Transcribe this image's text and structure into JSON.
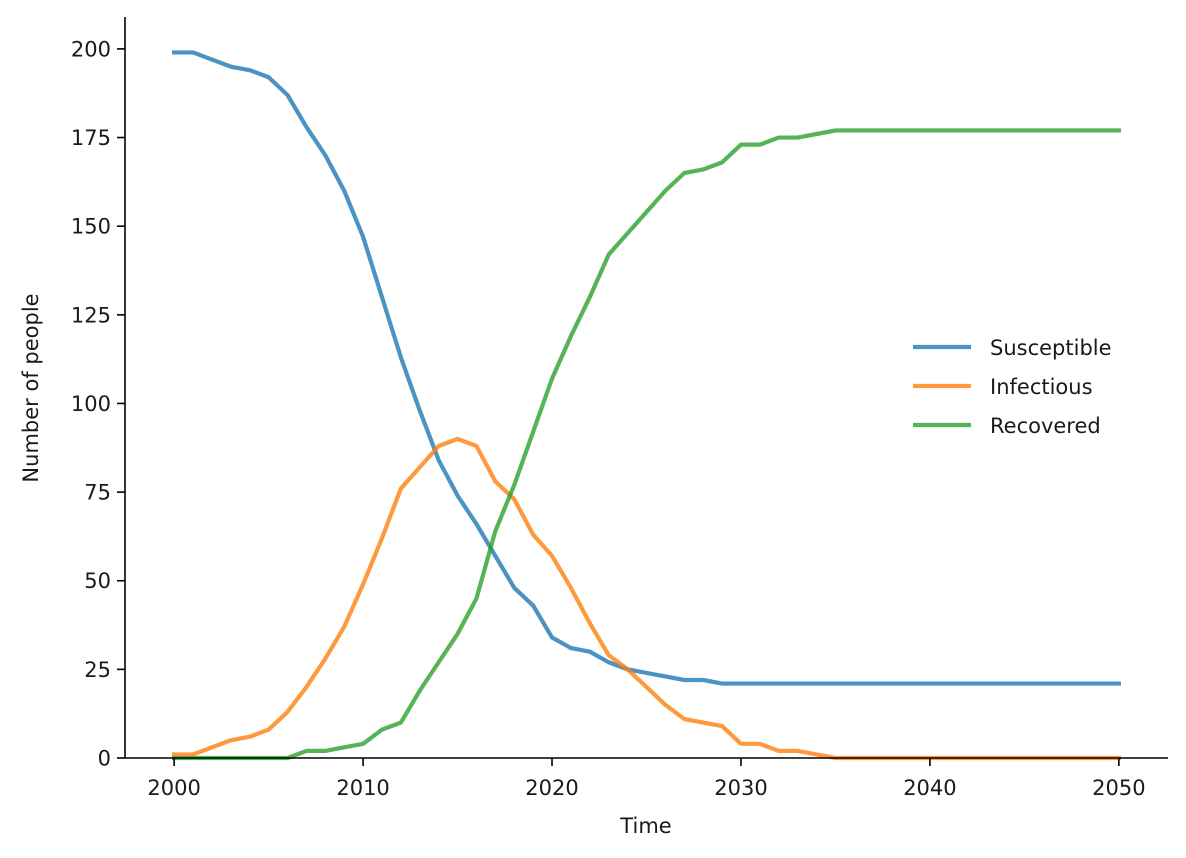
{
  "chart_data": {
    "type": "line",
    "title": "",
    "xlabel": "Time",
    "ylabel": "Number of people",
    "xlim": [
      1997.4,
      2052.6
    ],
    "ylim": [
      0,
      209
    ],
    "x_ticks": [
      2000,
      2010,
      2020,
      2030,
      2040,
      2050
    ],
    "y_ticks": [
      0,
      25,
      50,
      75,
      100,
      125,
      150,
      175,
      200
    ],
    "grid": false,
    "legend": "center-right",
    "x": [
      2000,
      2001,
      2002,
      2003,
      2004,
      2005,
      2006,
      2007,
      2008,
      2009,
      2010,
      2011,
      2012,
      2013,
      2014,
      2015,
      2016,
      2017,
      2018,
      2019,
      2020,
      2021,
      2022,
      2023,
      2024,
      2025,
      2026,
      2027,
      2028,
      2029,
      2030,
      2031,
      2032,
      2033,
      2034,
      2035,
      2036,
      2037,
      2038,
      2039,
      2040,
      2041,
      2042,
      2043,
      2044,
      2045,
      2046,
      2047,
      2048,
      2049,
      2050
    ],
    "series": [
      {
        "name": "Susceptible",
        "color": "#1f77b4",
        "values": [
          199,
          199,
          197,
          195,
          194,
          192,
          187,
          178,
          170,
          160,
          147,
          130,
          113,
          98,
          84,
          74,
          66,
          57,
          48,
          43,
          34,
          31,
          30,
          27,
          25,
          24,
          23,
          22,
          22,
          21,
          21,
          21,
          21,
          21,
          21,
          21,
          21,
          21,
          21,
          21,
          21,
          21,
          21,
          21,
          21,
          21,
          21,
          21,
          21,
          21,
          21
        ]
      },
      {
        "name": "Infectious",
        "color": "#ff7f0e",
        "values": [
          1,
          1,
          3,
          5,
          6,
          8,
          13,
          20,
          28,
          37,
          49,
          62,
          76,
          82,
          88,
          90,
          88,
          78,
          73,
          63,
          57,
          48,
          38,
          29,
          25,
          20,
          15,
          11,
          10,
          9,
          4,
          4,
          2,
          2,
          1,
          0,
          0,
          0,
          0,
          0,
          0,
          0,
          0,
          0,
          0,
          0,
          0,
          0,
          0,
          0,
          0
        ]
      },
      {
        "name": "Recovered",
        "color": "#2ca02c",
        "values": [
          0,
          0,
          0,
          0,
          0,
          0,
          0,
          2,
          2,
          3,
          4,
          8,
          10,
          19,
          27,
          35,
          45,
          64,
          77,
          92,
          107,
          119,
          130,
          142,
          148,
          154,
          160,
          165,
          166,
          168,
          173,
          173,
          175,
          175,
          176,
          177,
          177,
          177,
          177,
          177,
          177,
          177,
          177,
          177,
          177,
          177,
          177,
          177,
          177,
          177,
          177
        ]
      }
    ]
  }
}
